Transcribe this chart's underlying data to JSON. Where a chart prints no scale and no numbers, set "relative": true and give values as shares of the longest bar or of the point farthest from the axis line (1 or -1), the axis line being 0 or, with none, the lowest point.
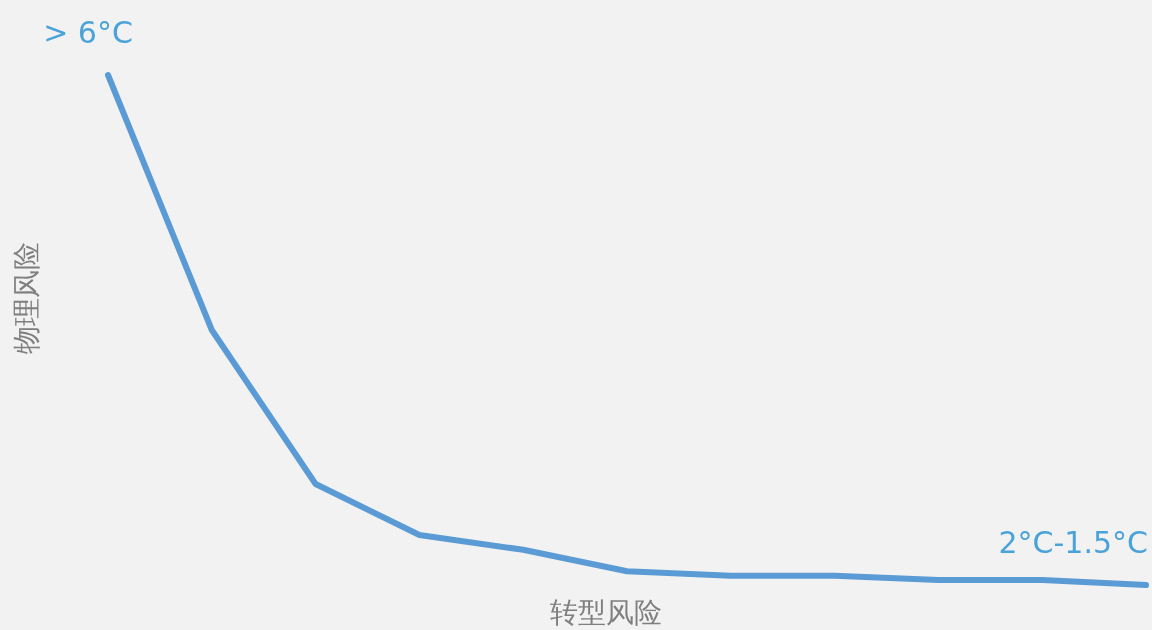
{
  "chart_data": {
    "type": "line",
    "relative": true,
    "xlabel": "转型风险",
    "ylabel": "物理风险",
    "categories": [
      null,
      null,
      null,
      null,
      null,
      null,
      null,
      null,
      null,
      null,
      null
    ],
    "series": [
      {
        "color": "#5b9bd5",
        "values": [
          1,
          0.5,
          0.198,
          0.098,
          0.069,
          0.027,
          0.018,
          0.018,
          0.01,
          0.01,
          0
        ]
      }
    ],
    "annotations": [
      "> 6°C",
      "2°C-1.5°C"
    ],
    "marker": "none",
    "line_style": "solid"
  }
}
